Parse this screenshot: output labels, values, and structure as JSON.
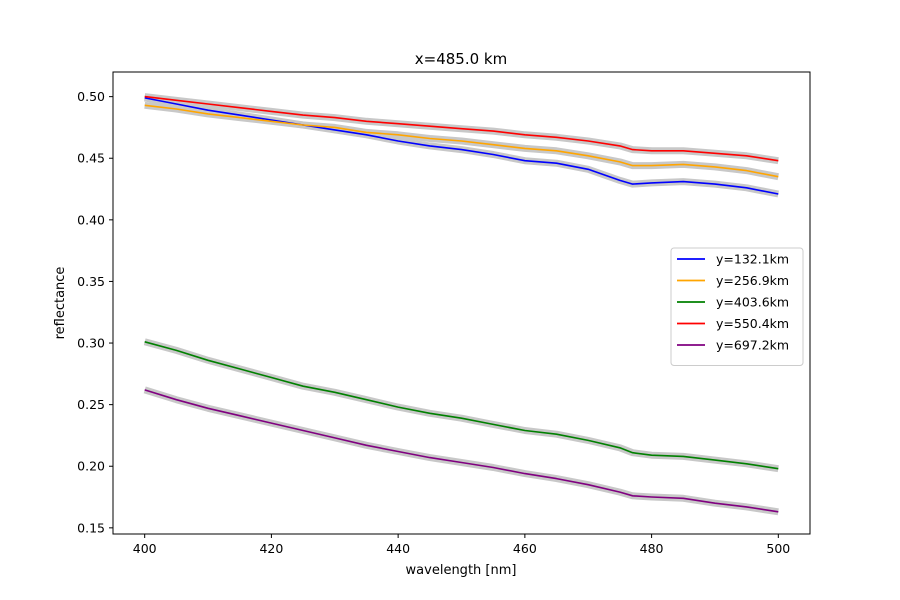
{
  "chart_data": {
    "type": "line",
    "title": "x=485.0 km",
    "xlabel": "wavelength [nm]",
    "ylabel": "reflectance",
    "xlim": [
      395,
      505
    ],
    "ylim": [
      0.145,
      0.52
    ],
    "xticks": [
      400,
      420,
      440,
      460,
      480,
      500
    ],
    "xtick_labels": [
      "400",
      "420",
      "440",
      "460",
      "480",
      "500"
    ],
    "yticks": [
      0.15,
      0.2,
      0.25,
      0.3,
      0.35,
      0.4,
      0.45,
      0.5
    ],
    "ytick_labels": [
      "0.15",
      "0.20",
      "0.25",
      "0.30",
      "0.35",
      "0.40",
      "0.45",
      "0.50"
    ],
    "grid": false,
    "legend_position": "center-right",
    "uncertainty_band_color": "#c8c8c8",
    "x": [
      400,
      405,
      410,
      415,
      420,
      425,
      430,
      435,
      440,
      445,
      450,
      455,
      460,
      465,
      470,
      475,
      477,
      480,
      485,
      490,
      495,
      500
    ],
    "series": [
      {
        "name": "y=132.1km",
        "color": "#0000ff",
        "values": [
          0.499,
          0.494,
          0.489,
          0.485,
          0.481,
          0.477,
          0.473,
          0.469,
          0.464,
          0.46,
          0.457,
          0.453,
          0.448,
          0.446,
          0.441,
          0.432,
          0.429,
          0.43,
          0.431,
          0.429,
          0.426,
          0.421
        ]
      },
      {
        "name": "y=256.9km",
        "color": "#ffa500",
        "values": [
          0.493,
          0.49,
          0.486,
          0.483,
          0.48,
          0.477,
          0.475,
          0.471,
          0.469,
          0.466,
          0.464,
          0.461,
          0.458,
          0.456,
          0.452,
          0.447,
          0.444,
          0.444,
          0.445,
          0.443,
          0.44,
          0.435
        ]
      },
      {
        "name": "y=403.6km",
        "color": "#008000",
        "values": [
          0.301,
          0.294,
          0.286,
          0.279,
          0.272,
          0.265,
          0.26,
          0.254,
          0.248,
          0.243,
          0.239,
          0.234,
          0.229,
          0.226,
          0.221,
          0.215,
          0.211,
          0.209,
          0.208,
          0.205,
          0.202,
          0.198
        ]
      },
      {
        "name": "y=550.4km",
        "color": "#ff0000",
        "values": [
          0.5,
          0.497,
          0.494,
          0.491,
          0.488,
          0.485,
          0.483,
          0.48,
          0.478,
          0.476,
          0.474,
          0.472,
          0.469,
          0.467,
          0.464,
          0.46,
          0.457,
          0.456,
          0.456,
          0.454,
          0.452,
          0.448
        ]
      },
      {
        "name": "y=697.2km",
        "color": "#800080",
        "values": [
          0.262,
          0.254,
          0.247,
          0.241,
          0.235,
          0.229,
          0.223,
          0.217,
          0.212,
          0.207,
          0.203,
          0.199,
          0.194,
          0.19,
          0.185,
          0.179,
          0.176,
          0.175,
          0.174,
          0.17,
          0.167,
          0.163
        ]
      }
    ]
  }
}
